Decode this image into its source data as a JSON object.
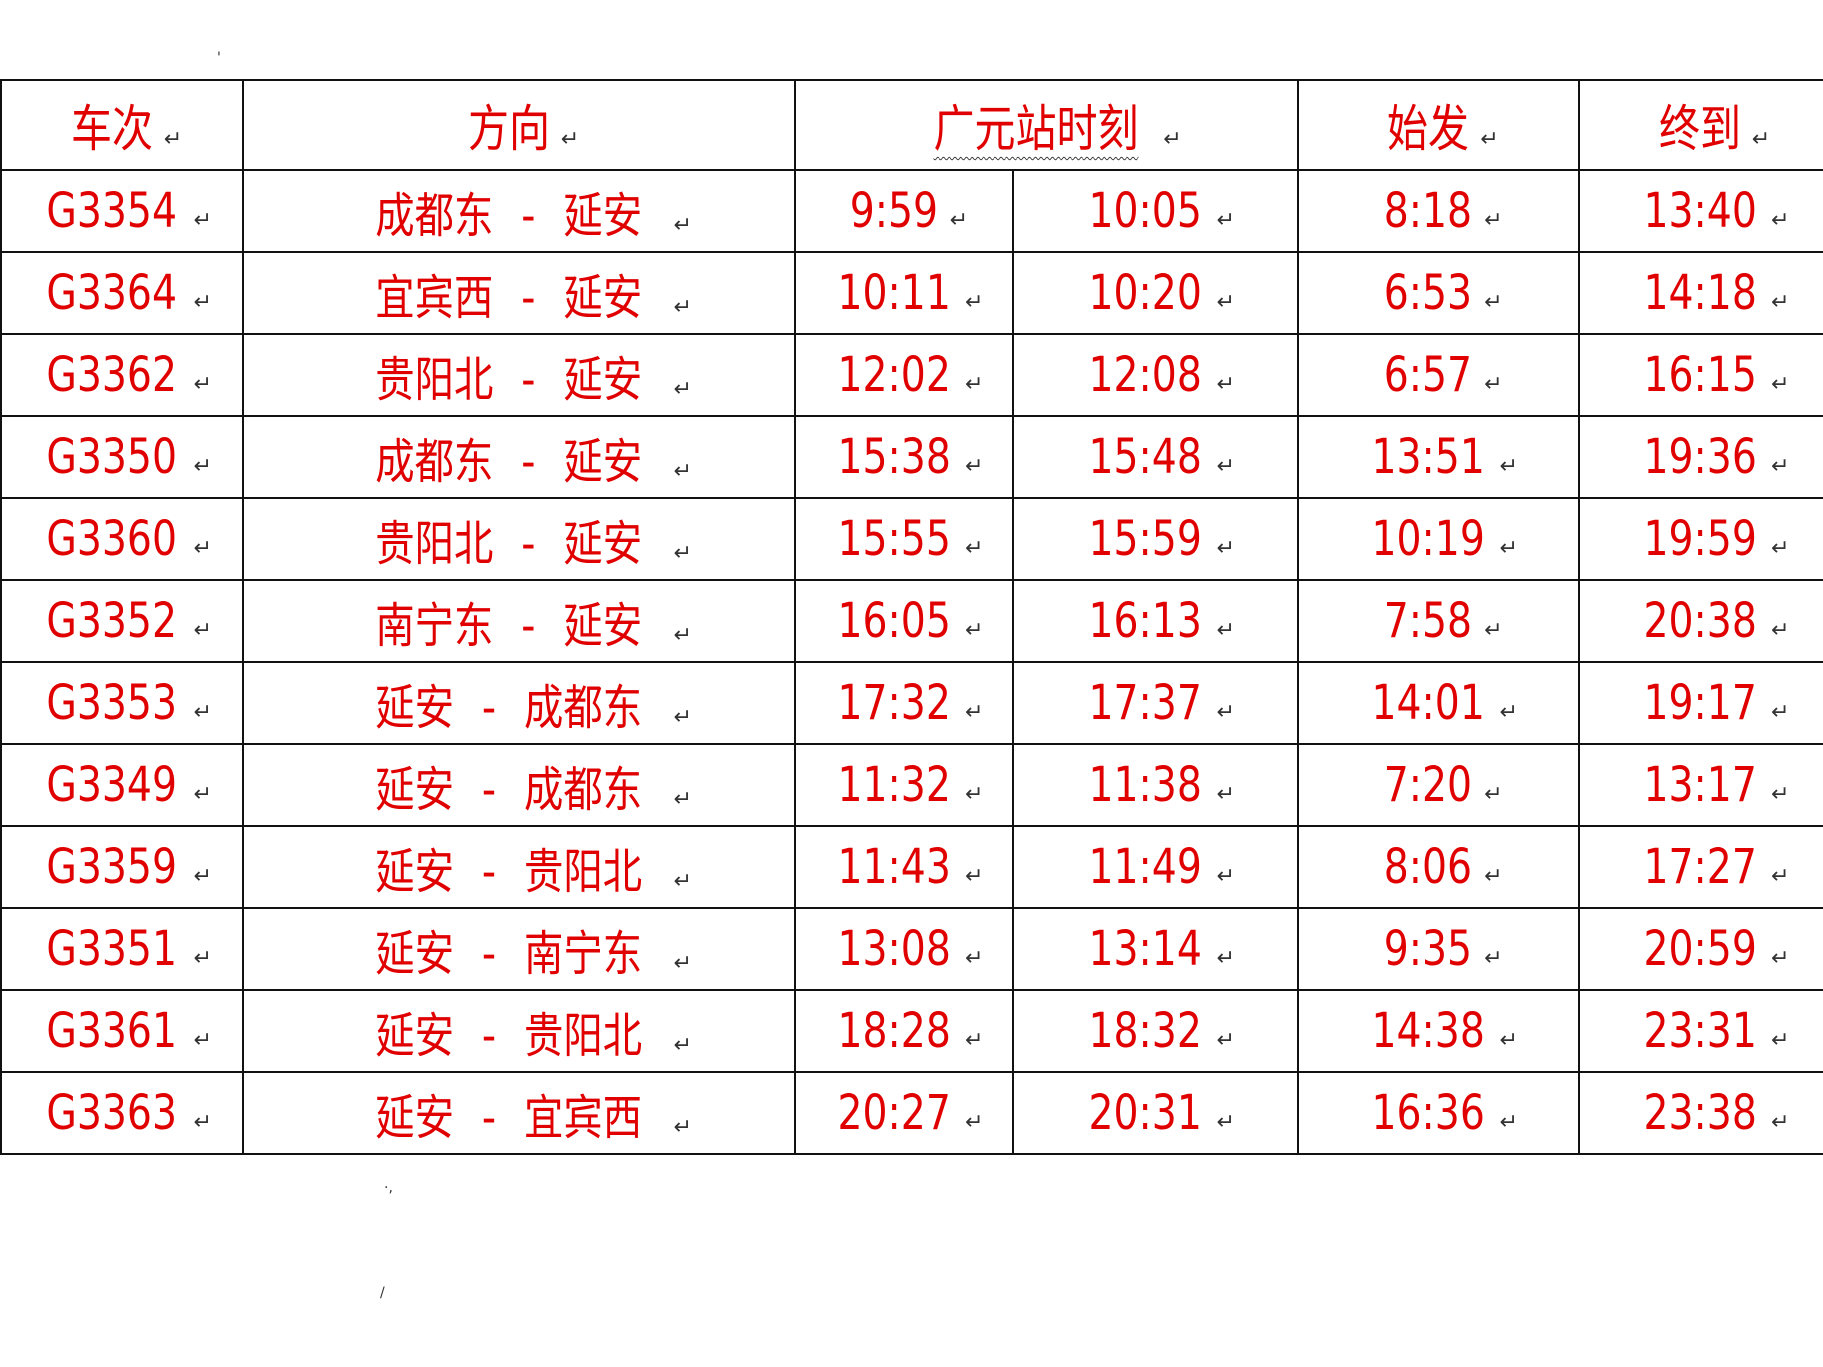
{
  "headers": {
    "train": "车次",
    "direction": "方向",
    "guangyuan": "广元站时刻",
    "origin_depart": "始发",
    "terminal_arrive": "终到"
  },
  "rows": [
    {
      "train": "G3354",
      "from": "成都东",
      "to": "延安",
      "arr": "9:59",
      "dep": "10:05",
      "start": "8:18",
      "end": "13:40"
    },
    {
      "train": "G3364",
      "from": "宜宾西",
      "to": "延安",
      "arr": "10:11",
      "dep": "10:20",
      "start": "6:53",
      "end": "14:18"
    },
    {
      "train": "G3362",
      "from": "贵阳北",
      "to": "延安",
      "arr": "12:02",
      "dep": "12:08",
      "start": "6:57",
      "end": "16:15"
    },
    {
      "train": "G3350",
      "from": "成都东",
      "to": "延安",
      "arr": "15:38",
      "dep": "15:48",
      "start": "13:51",
      "end": "19:36"
    },
    {
      "train": "G3360",
      "from": "贵阳北",
      "to": "延安",
      "arr": "15:55",
      "dep": "15:59",
      "start": "10:19",
      "end": "19:59"
    },
    {
      "train": "G3352",
      "from": "南宁东",
      "to": "延安",
      "arr": "16:05",
      "dep": "16:13",
      "start": "7:58",
      "end": "20:38"
    },
    {
      "train": "G3353",
      "from": "延安",
      "to": "成都东",
      "arr": "17:32",
      "dep": "17:37",
      "start": "14:01",
      "end": "19:17"
    },
    {
      "train": "G3349",
      "from": "延安",
      "to": "成都东",
      "arr": "11:32",
      "dep": "11:38",
      "start": "7:20",
      "end": "13:17"
    },
    {
      "train": "G3359",
      "from": "延安",
      "to": "贵阳北",
      "arr": "11:43",
      "dep": "11:49",
      "start": "8:06",
      "end": "17:27"
    },
    {
      "train": "G3351",
      "from": "延安",
      "to": "南宁东",
      "arr": "13:08",
      "dep": "13:14",
      "start": "9:35",
      "end": "20:59"
    },
    {
      "train": "G3361",
      "from": "延安",
      "to": "贵阳北",
      "arr": "18:28",
      "dep": "18:32",
      "start": "14:38",
      "end": "23:31"
    },
    {
      "train": "G3363",
      "from": "延安",
      "to": "宜宾西",
      "arr": "20:27",
      "dep": "20:31",
      "start": "16:36",
      "end": "23:38"
    }
  ],
  "separator": "-",
  "paragraph_mark": "↵",
  "colors": {
    "text": "#e00000",
    "border": "#111111"
  }
}
